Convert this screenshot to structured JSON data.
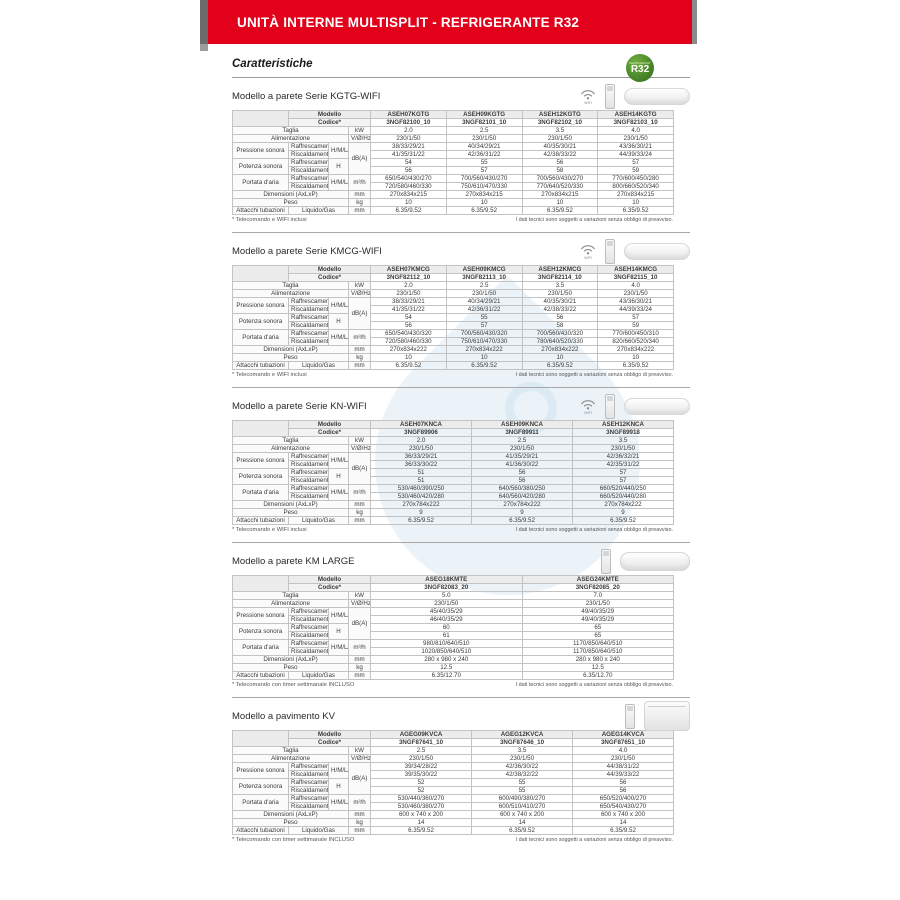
{
  "banner": {
    "title": "UNITÀ INTERNE MULTISPLIT - REFRIGERANTE R32"
  },
  "page": {
    "heading": "Caratteristiche",
    "r32_label": "R32",
    "r32_small": "REFRIGERANT",
    "wifi_label": "WIFI"
  },
  "labels": {
    "modello": "Modello",
    "codice": "Codice*",
    "taglia": "Taglia",
    "alimentazione": "Alimentazione",
    "pressione_sonora": "Pressione sonora",
    "potenza_sonora": "Potenza sonora",
    "portata_aria": "Portata d'aria",
    "dimensioni": "Dimensioni (AxLxP)",
    "peso": "Peso",
    "attacchi": "Attacchi tubazioni",
    "raffrescamento": "Raffrescamento",
    "riscaldamento": "Riscaldamento",
    "liquido_gas": "Liquido/Gas",
    "hmlq": "H/M/L/Q",
    "h": "H",
    "units": {
      "kw": "kW",
      "volt": "V/Ø/Hz",
      "dba": "dB(A)",
      "m3h": "m³/h",
      "mm": "mm",
      "kg": "kg"
    }
  },
  "tables": [
    {
      "title": "Modello a parete Serie KGTG-WIFI",
      "wifi": true,
      "unit_style": "wall",
      "models": [
        "ASEH07KGTG",
        "ASEH09KGTG",
        "ASEH12KGTG",
        "ASEH14KGTG"
      ],
      "codes": [
        "3NGF82100_10",
        "3NGF82101_10",
        "3NGF82102_10",
        "3NGF82103_10"
      ],
      "taglia": [
        "2.0",
        "2.5",
        "3.5",
        "4.0"
      ],
      "alimentazione": [
        "230/1/50",
        "230/1/50",
        "230/1/50",
        "230/1/50"
      ],
      "pressione": {
        "raffrescamento": [
          "38/33/29/21",
          "40/34/29/21",
          "40/35/30/21",
          "43/36/30/21"
        ],
        "riscaldamento": [
          "41/35/31/22",
          "42/36/31/22",
          "42/38/33/22",
          "44/39/33/24"
        ]
      },
      "potenza": {
        "raffrescamento": [
          "54",
          "55",
          "56",
          "57"
        ],
        "riscaldamento": [
          "56",
          "57",
          "58",
          "59"
        ]
      },
      "portata": {
        "raffrescamento": [
          "650/540/430/270",
          "700/560/430/270",
          "700/560/430/270",
          "770/600/450/280"
        ],
        "riscaldamento": [
          "720/580/460/330",
          "750/610/470/330",
          "770/640/520/330",
          "800/660/520/340"
        ]
      },
      "dimensioni": [
        "270x834x215",
        "270x834x215",
        "270x834x215",
        "270x834x215"
      ],
      "peso": [
        "10",
        "10",
        "10",
        "10"
      ],
      "attacchi": [
        "6.35/9.52",
        "6.35/9.52",
        "6.35/9.52",
        "6.35/9.52"
      ],
      "note_left": "* Telecomando e WIFI inclusi",
      "note_right": "I dati tecnici sono soggetti a variazioni senza obbligo di preavviso."
    },
    {
      "title": "Modello a parete Serie KMCG-WIFI",
      "wifi": true,
      "unit_style": "wall",
      "models": [
        "ASEH07KMCG",
        "ASEH09KMCG",
        "ASEH12KMCG",
        "ASEH14KMCG"
      ],
      "codes": [
        "3NGF82112_10",
        "3NGF82113_10",
        "3NGF82114_10",
        "3NGF82115_10"
      ],
      "taglia": [
        "2.0",
        "2.5",
        "3.5",
        "4.0"
      ],
      "alimentazione": [
        "230/1/50",
        "230/1/50",
        "230/1/50",
        "230/1/50"
      ],
      "pressione": {
        "raffrescamento": [
          "38/33/29/21",
          "40/34/29/21",
          "40/35/30/21",
          "43/36/30/21"
        ],
        "riscaldamento": [
          "41/35/31/22",
          "42/36/31/22",
          "42/38/33/22",
          "44/39/33/24"
        ]
      },
      "potenza": {
        "raffrescamento": [
          "54",
          "55",
          "56",
          "57"
        ],
        "riscaldamento": [
          "56",
          "57",
          "58",
          "59"
        ]
      },
      "portata": {
        "raffrescamento": [
          "650/540/430/320",
          "700/560/430/320",
          "700/560/430/320",
          "770/600/450/310"
        ],
        "riscaldamento": [
          "720/580/460/330",
          "750/610/470/330",
          "780/640/520/330",
          "820/660/520/340"
        ]
      },
      "dimensioni": [
        "270x834x222",
        "270x834x222",
        "270x834x222",
        "270x834x222"
      ],
      "peso": [
        "10",
        "10",
        "10",
        "10"
      ],
      "attacchi": [
        "6.35/9.52",
        "6.35/9.52",
        "6.35/9.52",
        "6.35/9.52"
      ],
      "note_left": "* Telecomando e WIFI inclusi",
      "note_right": "I dati tecnici sono soggetti a variazioni senza obbligo di preavviso."
    },
    {
      "title": "Modello a parete Serie KN-WIFI",
      "wifi": true,
      "unit_style": "wall",
      "models": [
        "ASEH07KNCA",
        "ASEH09KNCA",
        "ASEH12KNCA"
      ],
      "codes": [
        "3NGF89906",
        "3NGF89911",
        "3NGF89918"
      ],
      "taglia": [
        "2.0",
        "2.5",
        "3.5"
      ],
      "alimentazione": [
        "230/1/50",
        "230/1/50",
        "230/1/50"
      ],
      "pressione": {
        "raffrescamento": [
          "36/33/29/21",
          "41/35/29/21",
          "42/36/32/21"
        ],
        "riscaldamento": [
          "36/33/30/22",
          "41/36/30/22",
          "42/35/31/22"
        ]
      },
      "potenza": {
        "raffrescamento": [
          "51",
          "56",
          "57"
        ],
        "riscaldamento": [
          "51",
          "56",
          "57"
        ]
      },
      "portata": {
        "raffrescamento": [
          "530/460/390/250",
          "640/560/380/250",
          "660/520/440/250"
        ],
        "riscaldamento": [
          "530/460/420/280",
          "640/560/420/280",
          "660/520/440/280"
        ]
      },
      "dimensioni": [
        "270x784x222",
        "270x784x222",
        "270x784x222"
      ],
      "peso": [
        "9",
        "9",
        "9"
      ],
      "attacchi": [
        "6.35/9.52",
        "6.35/9.52",
        "6.35/9.52"
      ],
      "note_left": "* Telecomando e WIFI inclusi",
      "note_right": "I dati tecnici sono soggetti a variazioni senza obbligo di preavviso."
    },
    {
      "title": "Modello a parete KM LARGE",
      "wifi": false,
      "unit_style": "wall-large",
      "models": [
        "ASEG18KMTE",
        "ASEG24KMTE"
      ],
      "codes": [
        "3NGF82083_20",
        "3NGF82085_20"
      ],
      "taglia": [
        "5.0",
        "7.0"
      ],
      "alimentazione": [
        "230/1/50",
        "230/1/50"
      ],
      "pressione": {
        "raffrescamento": [
          "45/40/35/29",
          "49/40/35/29"
        ],
        "riscaldamento": [
          "46/40/35/29",
          "49/40/35/29"
        ]
      },
      "potenza": {
        "raffrescamento": [
          "60",
          "65"
        ],
        "riscaldamento": [
          "61",
          "65"
        ]
      },
      "portata": {
        "raffrescamento": [
          "980/810/640/510",
          "1170/850/640/510"
        ],
        "riscaldamento": [
          "1020/850/640/510",
          "1170/850/640/510"
        ]
      },
      "dimensioni": [
        "280 x 980 x 240",
        "280 x 980 x 240"
      ],
      "peso": [
        "12.5",
        "12.5"
      ],
      "attacchi": [
        "6.35/12.70",
        "6.35/12.70"
      ],
      "note_left": "* Telecomando con timer settimanale INCLUSO",
      "note_right": "I dati tecnici sono soggetti a variazioni senza obbligo di preavviso."
    },
    {
      "title": "Modello a pavimento KV",
      "wifi": false,
      "unit_style": "floor",
      "models": [
        "AGEG09KVCA",
        "AGEG12KVCA",
        "AGEG14KVCA"
      ],
      "codes": [
        "3NGF87641_10",
        "3NGF87646_10",
        "3NGF87651_10"
      ],
      "taglia": [
        "2.5",
        "3.5",
        "4.0"
      ],
      "alimentazione": [
        "230/1/50",
        "230/1/50",
        "230/1/50"
      ],
      "pressione": {
        "raffrescamento": [
          "39/34/28/22",
          "42/36/30/22",
          "44/38/31/22"
        ],
        "riscaldamento": [
          "39/35/30/22",
          "42/38/32/22",
          "44/39/33/22"
        ]
      },
      "potenza": {
        "raffrescamento": [
          "52",
          "55",
          "56"
        ],
        "riscaldamento": [
          "52",
          "55",
          "56"
        ]
      },
      "portata": {
        "raffrescamento": [
          "530/440/360/270",
          "600/490/380/270",
          "650/520/400/270"
        ],
        "riscaldamento": [
          "530/460/380/270",
          "600/510/410/270",
          "650/540/430/270"
        ]
      },
      "dimensioni": [
        "600 x 740 x 200",
        "600 x 740 x 200",
        "600 x 740 x 200"
      ],
      "peso": [
        "14",
        "14",
        "14"
      ],
      "attacchi": [
        "6.35/9.52",
        "6.35/9.52",
        "6.35/9.52"
      ],
      "note_left": "* Telecomando con timer settimanale INCLUSO",
      "note_right": "I dati tecnici sono soggetti a variazioni senza obbligo di preavviso."
    }
  ]
}
